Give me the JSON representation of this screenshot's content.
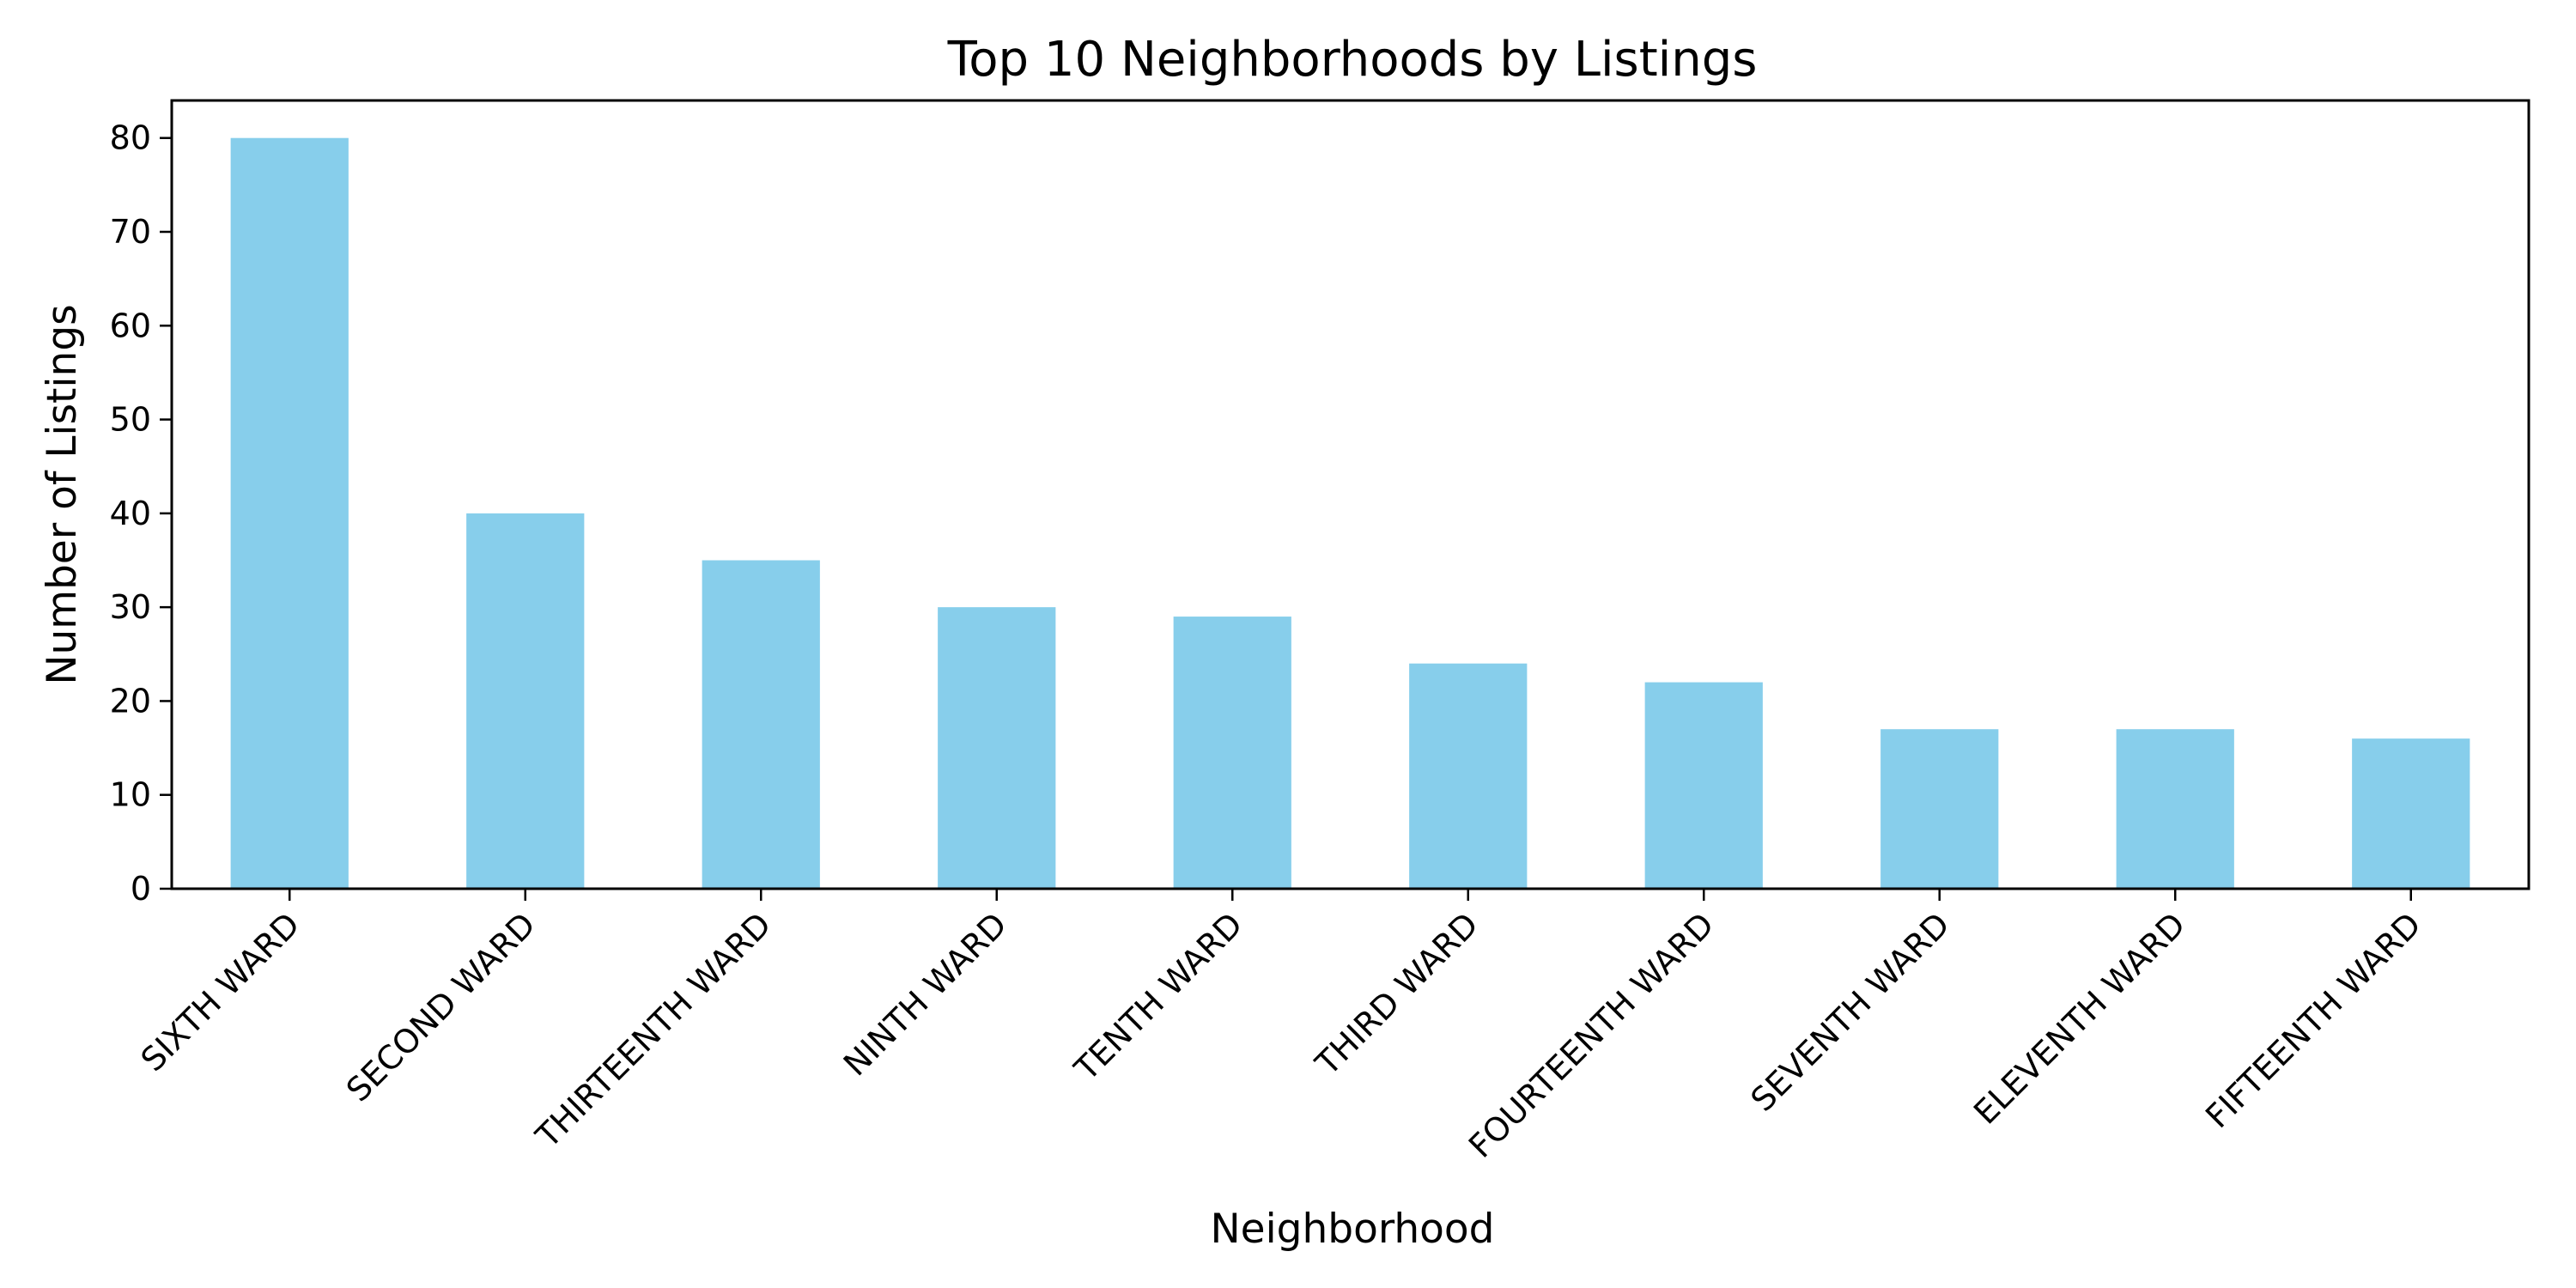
{
  "chart_data": {
    "type": "bar",
    "title": "Top 10 Neighborhoods by Listings",
    "xlabel": "Neighborhood",
    "ylabel": "Number of Listings",
    "categories": [
      "SIXTH WARD",
      "SECOND WARD",
      "THIRTEENTH WARD",
      "NINTH WARD",
      "TENTH WARD",
      "THIRD WARD",
      "FOURTEENTH WARD",
      "SEVENTH WARD",
      "ELEVENTH WARD",
      "FIFTEENTH WARD"
    ],
    "values": [
      80,
      40,
      35,
      30,
      29,
      24,
      22,
      17,
      17,
      16
    ],
    "ylim": [
      0,
      84
    ],
    "yticks": [
      0,
      10,
      20,
      30,
      40,
      50,
      60,
      70,
      80
    ],
    "bar_color": "#87ceeb",
    "grid": false,
    "legend": "none"
  }
}
